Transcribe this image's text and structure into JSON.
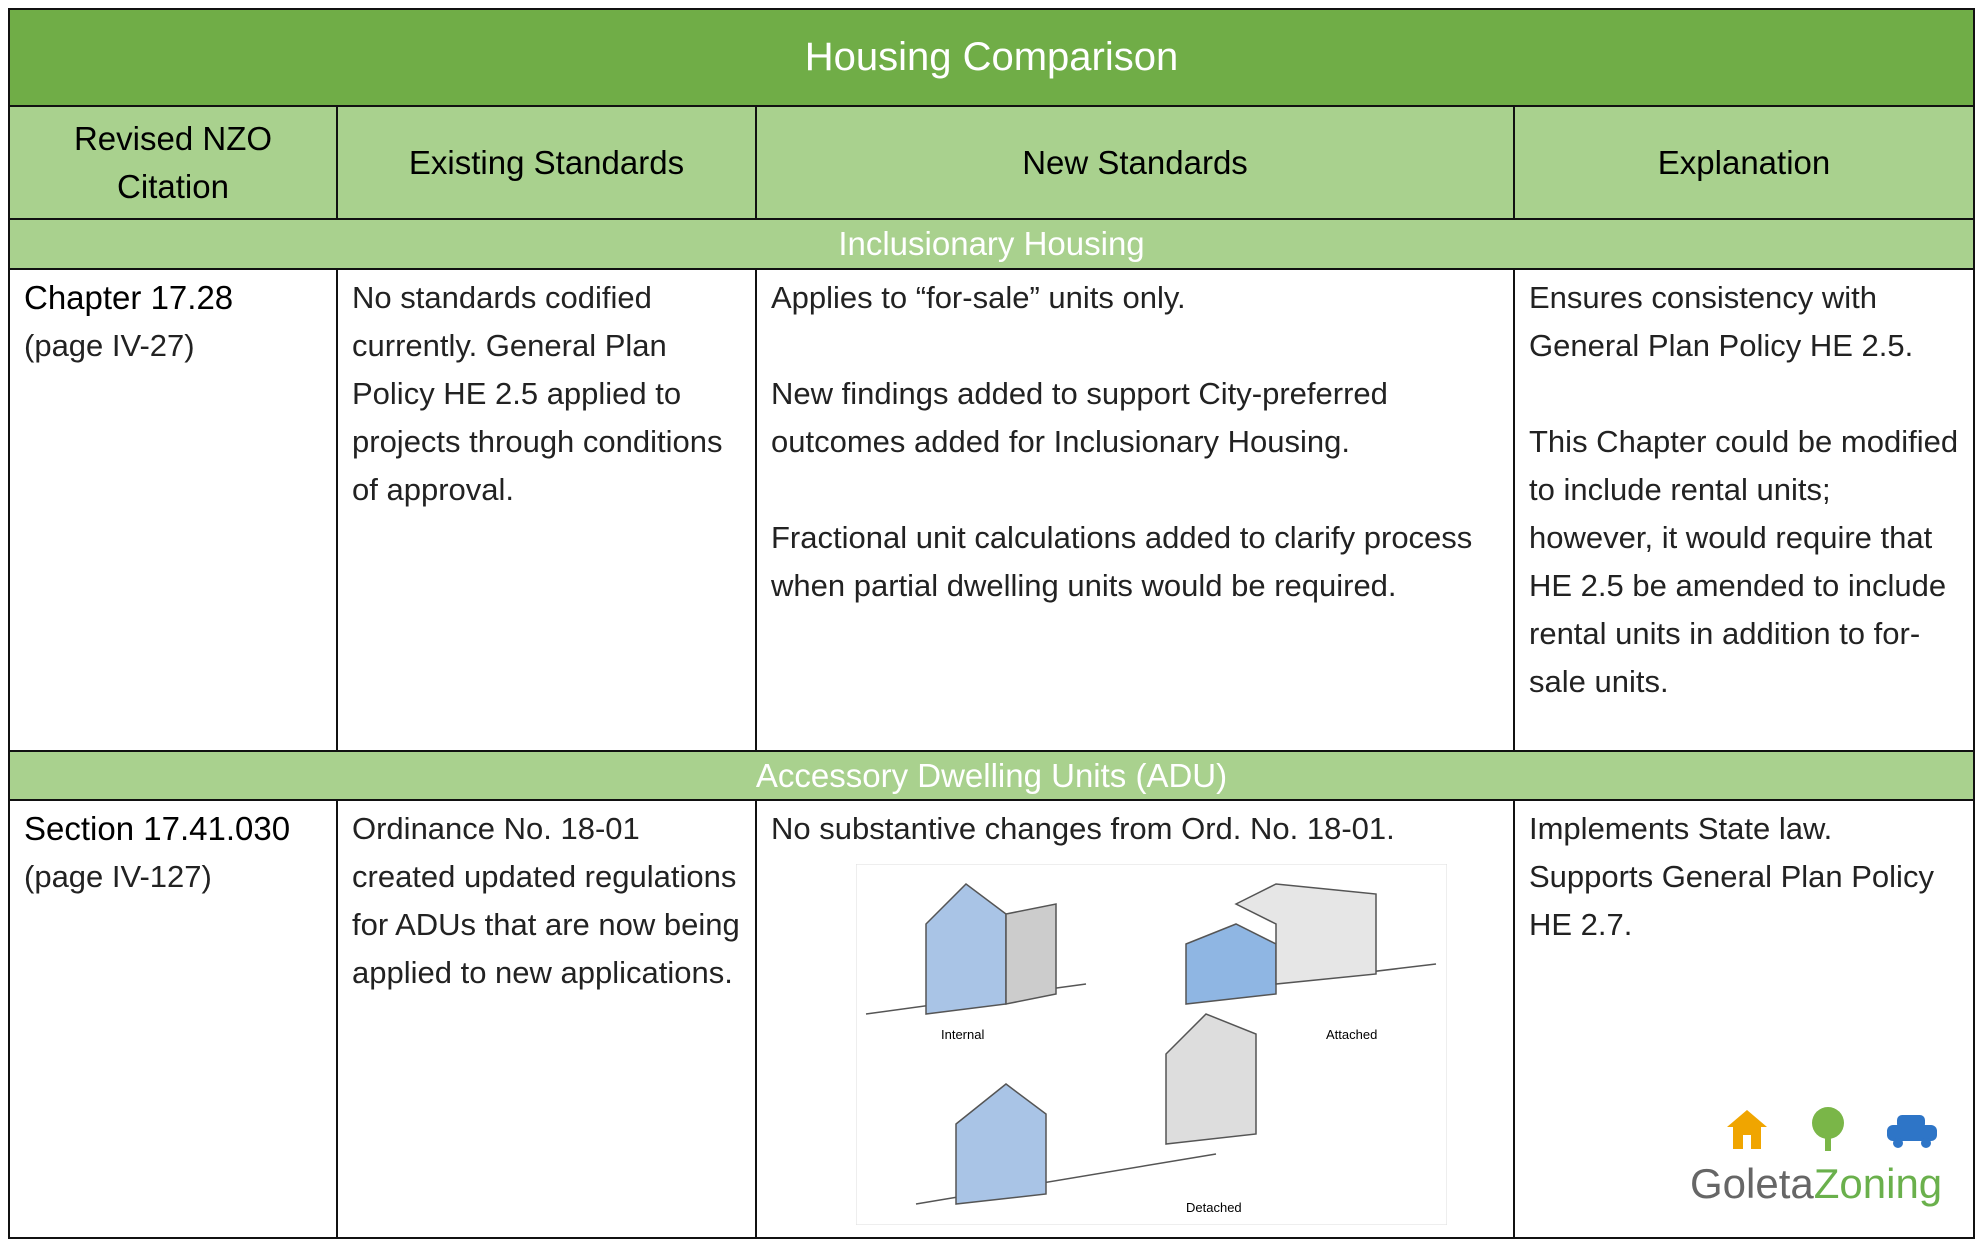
{
  "table": {
    "title": "Housing Comparison",
    "headers": [
      "Revised NZO Citation",
      "Existing Standards",
      "New Standards",
      "Explanation"
    ],
    "sections": [
      {
        "heading": "Inclusionary Housing",
        "row": {
          "citation": "Chapter 17.28",
          "page": "(page IV-27)",
          "existing": [
            "No standards codified currently. General Plan Policy HE 2.5 applied to projects through conditions of approval."
          ],
          "new": [
            "Applies to “for-sale” units only.",
            "New findings added to support City-preferred outcomes added for Inclusionary Housing.",
            "Fractional unit calculations added to clarify process when partial dwelling units would be required."
          ],
          "explanation": [
            "Ensures consistency with General Plan Policy HE 2.5.",
            "This Chapter could be modified to include rental units; however, it would require that HE 2.5 be amended to include rental units in addition to for-sale units."
          ]
        }
      },
      {
        "heading": "Accessory Dwelling Units (ADU)",
        "row": {
          "citation": "Section 17.41.030",
          "page": "(page IV-127)",
          "existing": [
            "Ordinance No. 18-01 created updated regulations for ADUs that are now being applied to new applications."
          ],
          "new": [
            "No substantive changes from Ord. No. 18-01."
          ],
          "explanation": [
            "Implements State law. Supports General Plan Policy HE 2.7."
          ]
        }
      }
    ]
  },
  "figure": {
    "captions": [
      "Internal",
      "Attached",
      "Detached"
    ]
  },
  "logo": {
    "part1": "Goleta",
    "part2": "Zoning"
  }
}
